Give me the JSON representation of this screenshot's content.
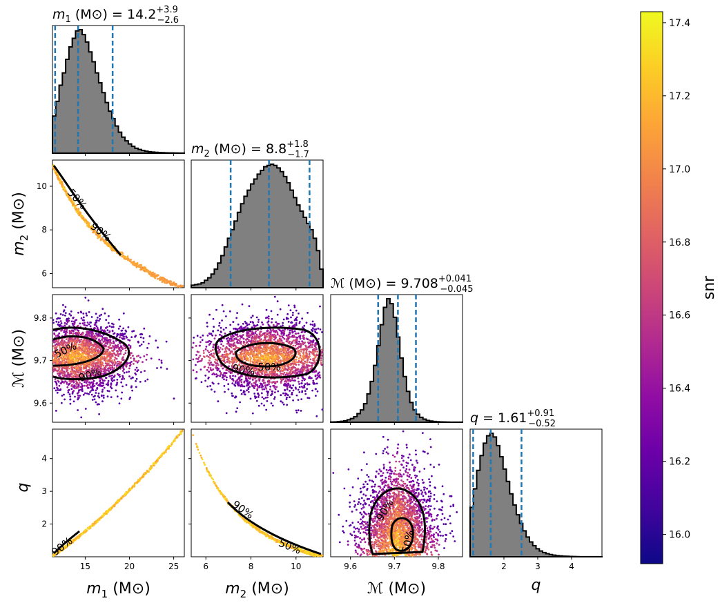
{
  "chart_data": {
    "type": "corner",
    "colorbar": {
      "label": "snr",
      "range": [
        15.92,
        17.43
      ],
      "ticks": [
        "16.0",
        "16.2",
        "16.4",
        "16.6",
        "16.8",
        "17.0",
        "17.2",
        "17.4"
      ],
      "colormap": "plasma"
    },
    "parameters": [
      {
        "key": "m1",
        "label": "m1 (M⊙)",
        "title": "m1 (M⊙) = 14.2 +3.9 −2.6",
        "median": 14.2,
        "plus": 3.9,
        "minus": 2.6,
        "range": [
          11.3,
          26.2
        ],
        "ticks": [
          "15",
          "20",
          "25"
        ],
        "hist": [
          0.3,
          0.42,
          0.55,
          0.65,
          0.76,
          0.86,
          0.93,
          0.99,
          1.0,
          0.96,
          0.9,
          0.82,
          0.74,
          0.65,
          0.57,
          0.49,
          0.41,
          0.34,
          0.28,
          0.22,
          0.17,
          0.13,
          0.1,
          0.075,
          0.055,
          0.04,
          0.03,
          0.022,
          0.016,
          0.012,
          0.009,
          0.007,
          0.005,
          0.004,
          0.003,
          0.002,
          0.002,
          0.0015,
          0.001,
          0.001
        ]
      },
      {
        "key": "m2",
        "label": "m2 (M⊙)",
        "title": "m2 (M⊙) = 8.8 +1.8 −1.7",
        "median": 8.8,
        "plus": 1.8,
        "minus": 1.7,
        "range": [
          5.35,
          11.2
        ],
        "ticks": [
          "6",
          "8",
          "10"
        ],
        "hist": [
          0.02,
          0.025,
          0.03,
          0.04,
          0.06,
          0.08,
          0.11,
          0.15,
          0.2,
          0.26,
          0.33,
          0.4,
          0.47,
          0.54,
          0.61,
          0.68,
          0.74,
          0.79,
          0.84,
          0.88,
          0.92,
          0.95,
          0.98,
          0.99,
          1.0,
          0.99,
          0.97,
          0.94,
          0.9,
          0.85,
          0.79,
          0.73,
          0.67,
          0.62,
          0.57,
          0.52,
          0.47,
          0.4,
          0.3,
          0.15
        ]
      },
      {
        "key": "Mc",
        "label": "ℳ (M⊙)",
        "title": "ℳ (M⊙) = 9.708 +0.041 −0.045",
        "median": 9.708,
        "plus": 0.041,
        "minus": 0.045,
        "range": [
          9.555,
          9.855
        ],
        "ticks": [
          "9.6",
          "9.7",
          "9.8"
        ],
        "hist": [
          0.002,
          0.003,
          0.005,
          0.008,
          0.012,
          0.02,
          0.03,
          0.045,
          0.07,
          0.1,
          0.15,
          0.23,
          0.33,
          0.46,
          0.62,
          0.79,
          0.93,
          1.0,
          0.96,
          0.85,
          0.69,
          0.52,
          0.37,
          0.25,
          0.16,
          0.1,
          0.065,
          0.04,
          0.025,
          0.015,
          0.01,
          0.006,
          0.004,
          0.003,
          0.002,
          0.0015,
          0.001,
          0.001,
          0.001,
          0.0005
        ]
      },
      {
        "key": "q",
        "label": "q",
        "title": "q = 1.61 +0.91 −0.52",
        "median": 1.61,
        "plus": 0.91,
        "minus": 0.52,
        "range": [
          1.0,
          4.9
        ],
        "ticks": [
          "2",
          "3",
          "4"
        ],
        "hist": [
          0.4,
          0.55,
          0.7,
          0.82,
          0.92,
          0.98,
          1.0,
          0.97,
          0.9,
          0.81,
          0.71,
          0.61,
          0.51,
          0.42,
          0.34,
          0.27,
          0.21,
          0.16,
          0.12,
          0.09,
          0.065,
          0.047,
          0.034,
          0.025,
          0.018,
          0.013,
          0.009,
          0.007,
          0.005,
          0.004,
          0.003,
          0.002,
          0.0015,
          0.001,
          0.001,
          0.0008,
          0.0006,
          0.0005,
          0.0004,
          0.0003
        ]
      }
    ],
    "axis_ticks_y": {
      "m2": [
        "6",
        "8",
        "10"
      ],
      "Mc": [
        "9.6",
        "9.7",
        "9.8"
      ],
      "q": [
        "2",
        "3",
        "4"
      ]
    },
    "contour_levels": [
      "50%",
      "90%"
    ],
    "colors": {
      "hist_fill": "#808080",
      "hist_edge": "#000000",
      "quantile_lines": "#1f77b4",
      "contour": "#000000"
    }
  }
}
